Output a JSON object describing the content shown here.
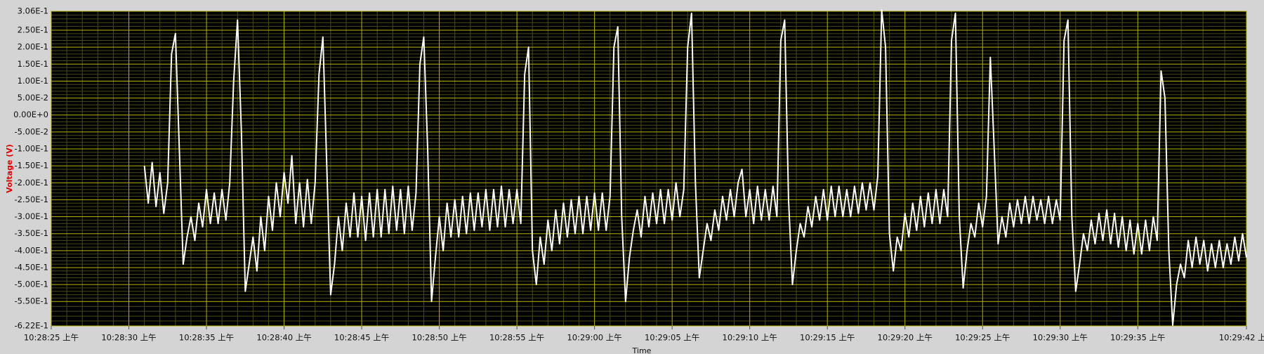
{
  "chart_data": {
    "type": "line",
    "xlabel": "Time",
    "ylabel": "Voltage (V)",
    "color": "#ffffff",
    "grid": true,
    "xlim": [
      0,
      77
    ],
    "ylim": [
      -0.622,
      0.306
    ],
    "xticks": [
      {
        "value": 0,
        "label": "10:28:25 上午"
      },
      {
        "value": 5,
        "label": "10:28:30 上午"
      },
      {
        "value": 10,
        "label": "10:28:35 上午"
      },
      {
        "value": 15,
        "label": "10:28:40 上午"
      },
      {
        "value": 20,
        "label": "10:28:45 上午"
      },
      {
        "value": 25,
        "label": "10:28:50 上午"
      },
      {
        "value": 30,
        "label": "10:28:55 上午"
      },
      {
        "value": 35,
        "label": "10:29:00 上午"
      },
      {
        "value": 40,
        "label": "10:29:05 上午"
      },
      {
        "value": 45,
        "label": "10:29:10 上午"
      },
      {
        "value": 50,
        "label": "10:29:15 上午"
      },
      {
        "value": 55,
        "label": "10:29:20 上午"
      },
      {
        "value": 60,
        "label": "10:29:25 上午"
      },
      {
        "value": 65,
        "label": "10:29:30 上午"
      },
      {
        "value": 70,
        "label": "10:29:35 上午"
      },
      {
        "value": 77,
        "label": "10:29:42 上午"
      }
    ],
    "yticks": [
      {
        "value": 0.306,
        "label": "3.06E-1"
      },
      {
        "value": 0.25,
        "label": "2.50E-1"
      },
      {
        "value": 0.2,
        "label": "2.00E-1"
      },
      {
        "value": 0.15,
        "label": "1.50E-1"
      },
      {
        "value": 0.1,
        "label": "1.00E-1"
      },
      {
        "value": 0.05,
        "label": "5.00E-2"
      },
      {
        "value": 0,
        "label": "0.00E+0"
      },
      {
        "value": -0.05,
        "label": "-5.00E-2"
      },
      {
        "value": -0.1,
        "label": "-1.00E-1"
      },
      {
        "value": -0.15,
        "label": "-1.50E-1"
      },
      {
        "value": -0.2,
        "label": "-2.00E-1"
      },
      {
        "value": -0.25,
        "label": "-2.50E-1"
      },
      {
        "value": -0.3,
        "label": "-3.00E-1"
      },
      {
        "value": -0.35,
        "label": "-3.50E-1"
      },
      {
        "value": -0.4,
        "label": "-4.00E-1"
      },
      {
        "value": -0.45,
        "label": "-4.50E-1"
      },
      {
        "value": -0.5,
        "label": "-5.00E-1"
      },
      {
        "value": -0.55,
        "label": "-5.50E-1"
      },
      {
        "value": -0.622,
        "label": "-6.22E-1"
      }
    ],
    "x": [
      6,
      6.25,
      6.5,
      6.75,
      7,
      7.25,
      7.5,
      7.75,
      8,
      8.25,
      8.5,
      8.75,
      9,
      9.25,
      9.5,
      9.75,
      10,
      10.25,
      10.5,
      10.75,
      11,
      11.25,
      11.5,
      11.75,
      12,
      12.25,
      12.5,
      12.75,
      13,
      13.25,
      13.5,
      13.75,
      14,
      14.25,
      14.5,
      14.75,
      15,
      15.25,
      15.5,
      15.75,
      16,
      16.25,
      16.5,
      16.75,
      17,
      17.25,
      17.5,
      17.75,
      18,
      18.25,
      18.5,
      18.75,
      19,
      19.25,
      19.5,
      19.75,
      20,
      20.25,
      20.5,
      20.75,
      21,
      21.25,
      21.5,
      21.75,
      22,
      22.25,
      22.5,
      22.75,
      23,
      23.25,
      23.5,
      23.75,
      24,
      24.25,
      24.5,
      24.75,
      25,
      25.25,
      25.5,
      25.75,
      26,
      26.25,
      26.5,
      26.75,
      27,
      27.25,
      27.5,
      27.75,
      28,
      28.25,
      28.5,
      28.75,
      29,
      29.25,
      29.5,
      29.75,
      30,
      30.25,
      30.5,
      30.75,
      31,
      31.25,
      31.5,
      31.75,
      32,
      32.25,
      32.5,
      32.75,
      33,
      33.25,
      33.5,
      33.75,
      34,
      34.25,
      34.5,
      34.75,
      35,
      35.25,
      35.5,
      35.75,
      36,
      36.25,
      36.5,
      36.75,
      37,
      37.25,
      37.5,
      37.75,
      38,
      38.25,
      38.5,
      38.75,
      39,
      39.25,
      39.5,
      39.75,
      40,
      40.25,
      40.5,
      40.75,
      41,
      41.25,
      41.5,
      41.75,
      42,
      42.25,
      42.5,
      42.75,
      43,
      43.25,
      43.5,
      43.75,
      44,
      44.25,
      44.5,
      44.75,
      45,
      45.25,
      45.5,
      45.75,
      46,
      46.25,
      46.5,
      46.75,
      47,
      47.25,
      47.5,
      47.75,
      48,
      48.25,
      48.5,
      48.75,
      49,
      49.25,
      49.5,
      49.75,
      50,
      50.25,
      50.5,
      50.75,
      51,
      51.25,
      51.5,
      51.75,
      52,
      52.25,
      52.5,
      52.75,
      53,
      53.25,
      53.5,
      53.75,
      54,
      54.25,
      54.5,
      54.75,
      55,
      55.25,
      55.5,
      55.75,
      56,
      56.25,
      56.5,
      56.75,
      57,
      57.25,
      57.5,
      57.75,
      58,
      58.25,
      58.5,
      58.75,
      59,
      59.25,
      59.5,
      59.75,
      60,
      60.25,
      60.5,
      60.75,
      61,
      61.25,
      61.5,
      61.75,
      62,
      62.25,
      62.5,
      62.75,
      63,
      63.25,
      63.5,
      63.75,
      64,
      64.25,
      64.5,
      64.75,
      65,
      65.25,
      65.5,
      65.75,
      66,
      66.25,
      66.5,
      66.75,
      67,
      67.25,
      67.5,
      67.75,
      68,
      68.25,
      68.5,
      68.75,
      69,
      69.25,
      69.5,
      69.75,
      70,
      70.25,
      70.5,
      70.75,
      71,
      71.25,
      71.5,
      71.75,
      72,
      72.25,
      72.5,
      72.75,
      73,
      73.25,
      73.5,
      73.75,
      74,
      74.25,
      74.5,
      74.75,
      75,
      75.25,
      75.5,
      75.75,
      76,
      76.25,
      76.5,
      76.75,
      77
    ],
    "values": [
      -0.15,
      -0.26,
      -0.14,
      -0.27,
      -0.17,
      -0.29,
      -0.2,
      0.18,
      0.24,
      -0.1,
      -0.44,
      -0.36,
      -0.3,
      -0.37,
      -0.26,
      -0.33,
      -0.22,
      -0.32,
      -0.23,
      -0.32,
      -0.22,
      -0.31,
      -0.2,
      0.1,
      0.28,
      -0.05,
      -0.52,
      -0.44,
      -0.36,
      -0.46,
      -0.3,
      -0.4,
      -0.24,
      -0.34,
      -0.2,
      -0.3,
      -0.17,
      -0.26,
      -0.12,
      -0.32,
      -0.2,
      -0.33,
      -0.19,
      -0.32,
      -0.2,
      0.12,
      0.23,
      -0.15,
      -0.53,
      -0.44,
      -0.3,
      -0.4,
      -0.26,
      -0.36,
      -0.23,
      -0.36,
      -0.24,
      -0.37,
      -0.23,
      -0.36,
      -0.22,
      -0.36,
      -0.22,
      -0.35,
      -0.21,
      -0.34,
      -0.22,
      -0.35,
      -0.21,
      -0.34,
      -0.23,
      0.15,
      0.23,
      -0.1,
      -0.55,
      -0.42,
      -0.3,
      -0.4,
      -0.26,
      -0.36,
      -0.25,
      -0.36,
      -0.24,
      -0.35,
      -0.23,
      -0.34,
      -0.23,
      -0.33,
      -0.22,
      -0.34,
      -0.22,
      -0.33,
      -0.21,
      -0.33,
      -0.22,
      -0.32,
      -0.22,
      -0.32,
      0.12,
      0.2,
      -0.4,
      -0.5,
      -0.36,
      -0.44,
      -0.31,
      -0.4,
      -0.28,
      -0.38,
      -0.26,
      -0.36,
      -0.25,
      -0.35,
      -0.24,
      -0.35,
      -0.24,
      -0.34,
      -0.23,
      -0.34,
      -0.23,
      -0.34,
      -0.24,
      0.2,
      0.26,
      -0.3,
      -0.55,
      -0.42,
      -0.34,
      -0.28,
      -0.36,
      -0.24,
      -0.33,
      -0.23,
      -0.32,
      -0.22,
      -0.32,
      -0.22,
      -0.31,
      -0.2,
      -0.3,
      -0.22,
      0.2,
      0.3,
      -0.2,
      -0.48,
      -0.4,
      -0.32,
      -0.37,
      -0.28,
      -0.34,
      -0.24,
      -0.31,
      -0.22,
      -0.3,
      -0.2,
      -0.16,
      -0.3,
      -0.22,
      -0.32,
      -0.21,
      -0.31,
      -0.22,
      -0.31,
      -0.21,
      -0.3,
      0.22,
      0.28,
      -0.25,
      -0.5,
      -0.4,
      -0.32,
      -0.36,
      -0.27,
      -0.33,
      -0.24,
      -0.31,
      -0.22,
      -0.31,
      -0.21,
      -0.3,
      -0.21,
      -0.3,
      -0.22,
      -0.3,
      -0.21,
      -0.29,
      -0.2,
      -0.28,
      -0.2,
      -0.28,
      -0.18,
      0.31,
      0.2,
      -0.35,
      -0.46,
      -0.36,
      -0.4,
      -0.29,
      -0.36,
      -0.26,
      -0.34,
      -0.24,
      -0.33,
      -0.23,
      -0.32,
      -0.22,
      -0.32,
      -0.22,
      -0.3,
      0.22,
      0.3,
      -0.3,
      -0.51,
      -0.4,
      -0.32,
      -0.36,
      -0.26,
      -0.33,
      -0.24,
      0.17,
      -0.1,
      -0.38,
      -0.3,
      -0.36,
      -0.26,
      -0.33,
      -0.25,
      -0.32,
      -0.24,
      -0.32,
      -0.24,
      -0.31,
      -0.25,
      -0.32,
      -0.24,
      -0.32,
      -0.25,
      -0.31,
      0.22,
      0.28,
      -0.3,
      -0.52,
      -0.44,
      -0.35,
      -0.4,
      -0.31,
      -0.38,
      -0.29,
      -0.37,
      -0.28,
      -0.38,
      -0.29,
      -0.39,
      -0.3,
      -0.4,
      -0.31,
      -0.41,
      -0.32,
      -0.41,
      -0.31,
      -0.4,
      -0.3,
      -0.37,
      0.13,
      0.05,
      -0.4,
      -0.62,
      -0.5,
      -0.44,
      -0.48,
      -0.37,
      -0.45,
      -0.36,
      -0.44,
      -0.37,
      -0.46,
      -0.38,
      -0.45,
      -0.37,
      -0.45,
      -0.38,
      -0.44,
      -0.36,
      -0.43,
      -0.35,
      -0.42
    ]
  }
}
